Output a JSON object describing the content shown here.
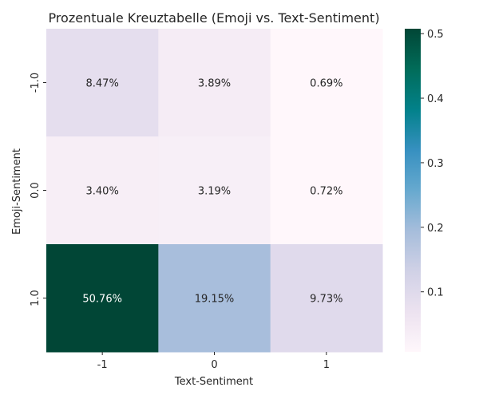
{
  "chart_data": {
    "type": "heatmap",
    "title": "Prozentuale Kreuztabelle (Emoji vs. Text-Sentiment)",
    "xlabel": "Text-Sentiment",
    "ylabel": "Emoji-Sentiment",
    "x_categories": [
      "-1",
      "0",
      "1"
    ],
    "y_categories": [
      "-1.0",
      "0.0",
      "1.0"
    ],
    "values": [
      [
        0.0847,
        0.0389,
        0.0069
      ],
      [
        0.034,
        0.0319,
        0.0072
      ],
      [
        0.5076,
        0.1915,
        0.0973
      ]
    ],
    "cell_labels": [
      [
        "8.47%",
        "3.89%",
        "0.69%"
      ],
      [
        "3.40%",
        "3.19%",
        "0.72%"
      ],
      [
        "50.76%",
        "19.15%",
        "9.73%"
      ]
    ],
    "colormap": "PuBuGn",
    "vmin": 0.0069,
    "vmax": 0.5076,
    "colorbar_ticks": [
      "0.1",
      "0.2",
      "0.3",
      "0.4",
      "0.5"
    ],
    "colorbar_tick_values": [
      0.1,
      0.2,
      0.3,
      0.4,
      0.5
    ],
    "colors": {
      "ramp": [
        "#fff7fb",
        "#ece2f0",
        "#d0d1e6",
        "#a6bddb",
        "#67a9cf",
        "#3690c0",
        "#02818a",
        "#016c59",
        "#014636"
      ],
      "dark_text": "#262626",
      "light_text": "#ffffff"
    }
  }
}
